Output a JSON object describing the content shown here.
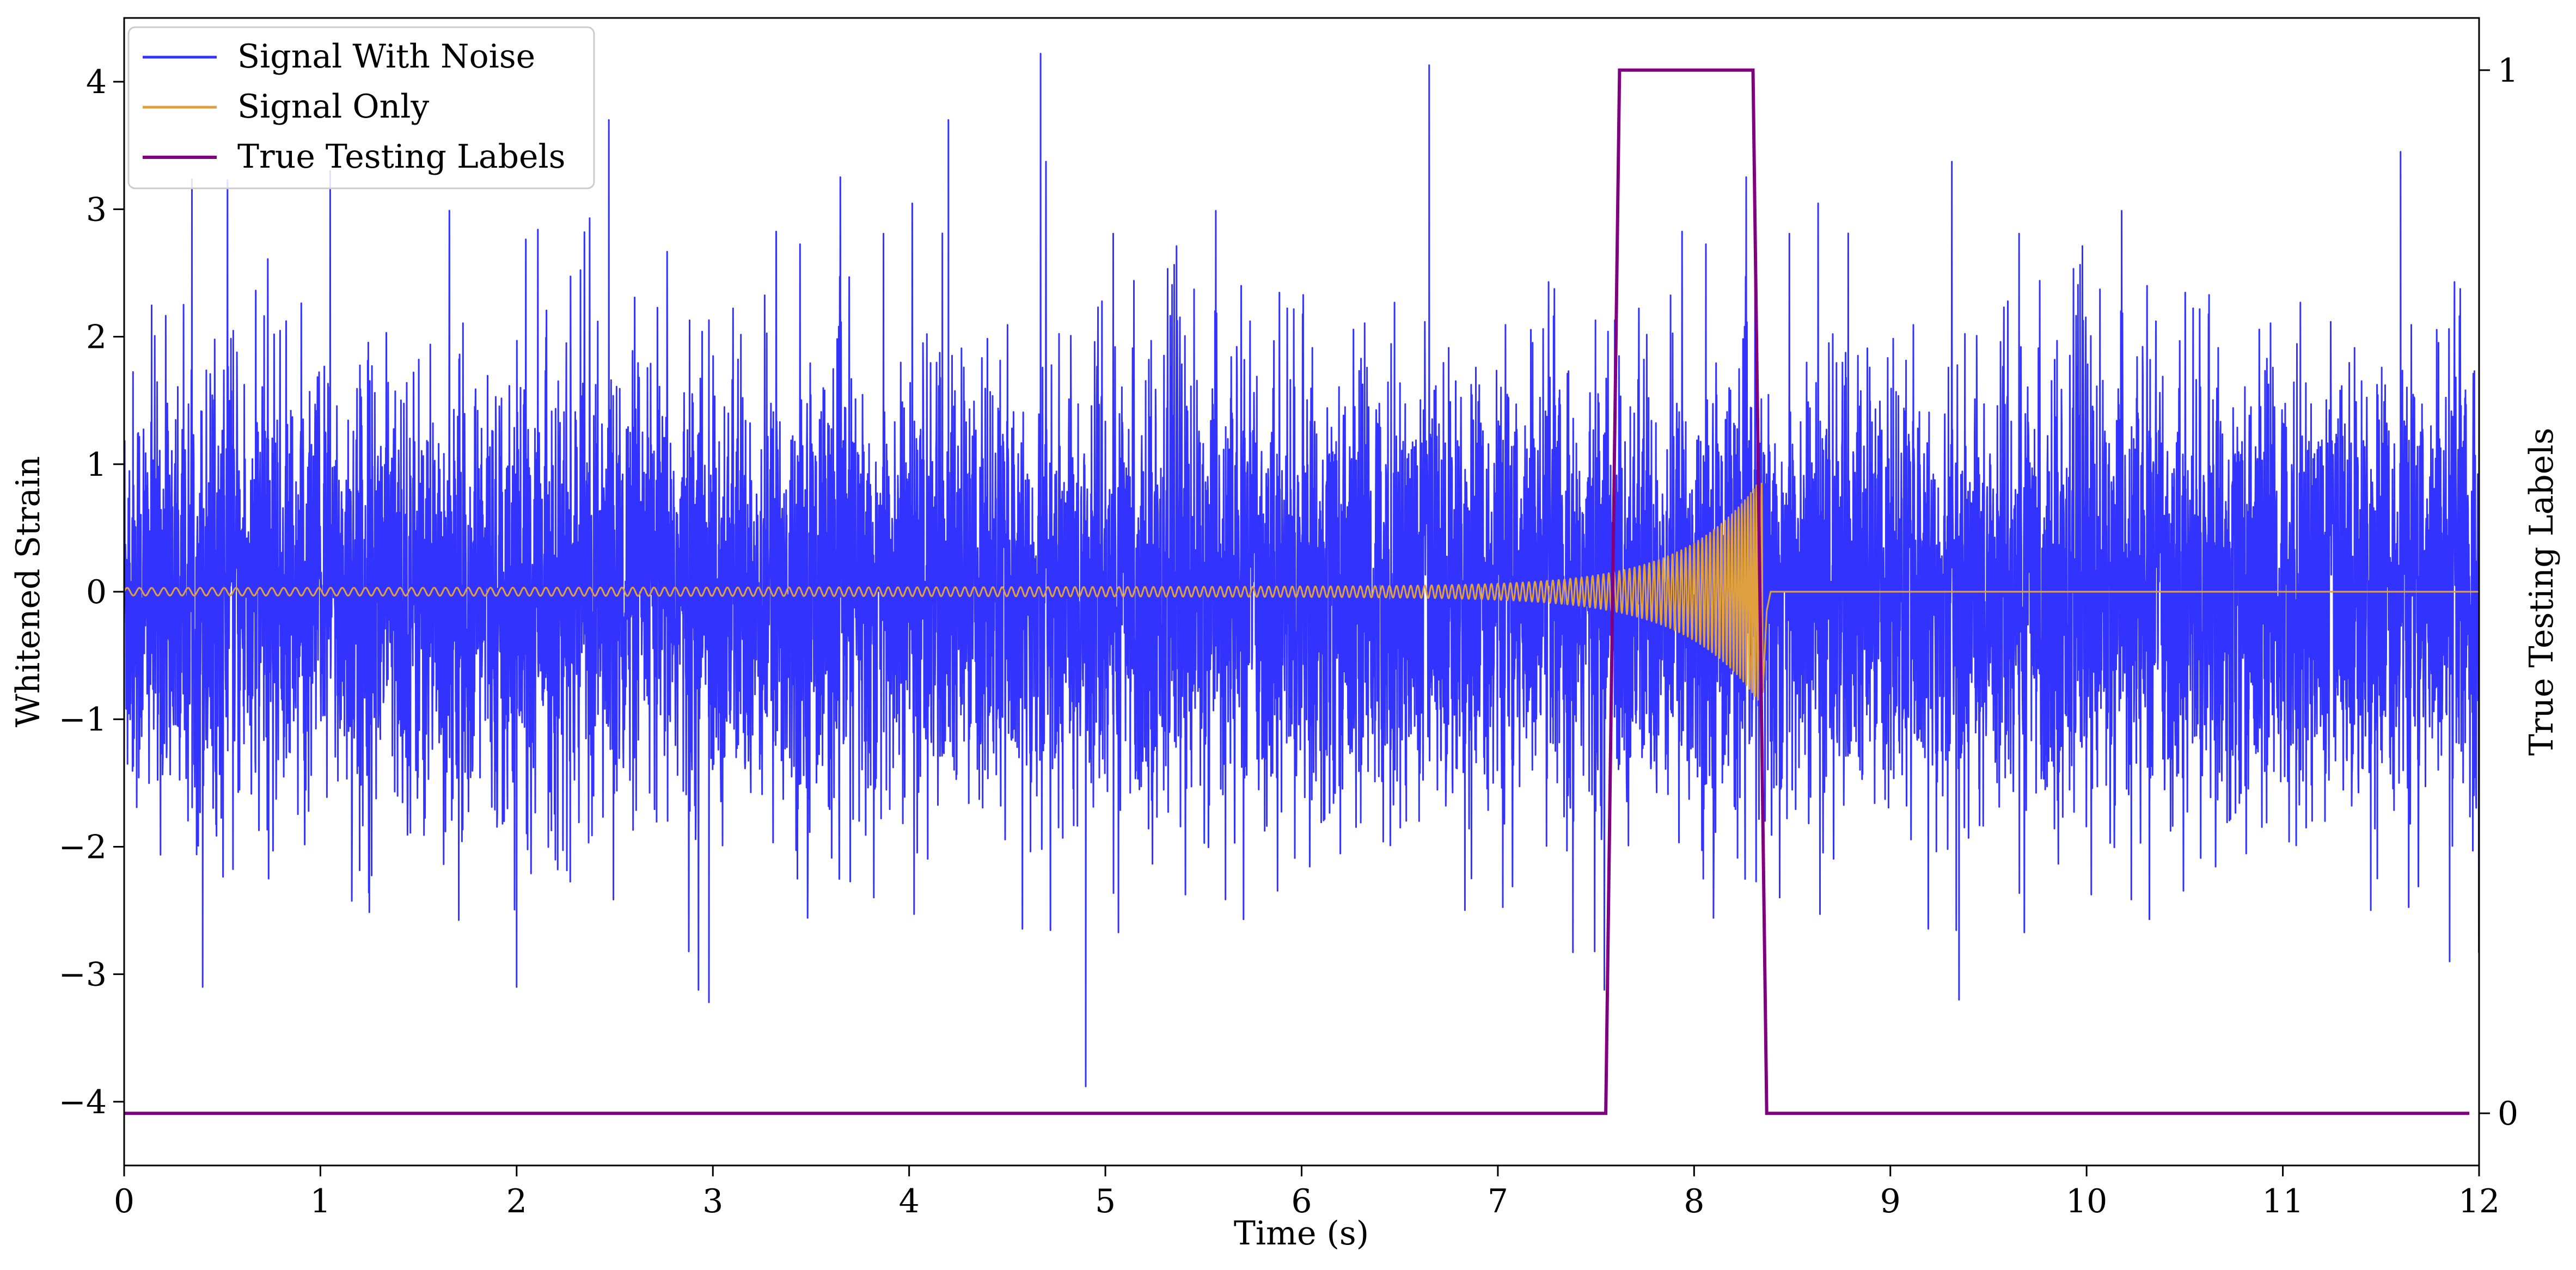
{
  "chart_data": {
    "type": "line",
    "title": "",
    "xlabel": "Time (s)",
    "ylabel": "Whitened Strain",
    "y2label": "True Testing Labels",
    "xlim": [
      0,
      12
    ],
    "ylim": [
      -4.5,
      4.5
    ],
    "y2lim": [
      -0.05,
      1.05
    ],
    "x_ticks": [
      0,
      1,
      2,
      3,
      4,
      5,
      6,
      7,
      8,
      9,
      10,
      11,
      12
    ],
    "x_tick_labels": [
      "0",
      "1",
      "2",
      "3",
      "4",
      "5",
      "6",
      "7",
      "8",
      "9",
      "10",
      "11",
      "12"
    ],
    "y_ticks": [
      -4,
      -3,
      -2,
      -1,
      0,
      1,
      2,
      3,
      4
    ],
    "y_tick_labels": [
      "−4",
      "−3",
      "−2",
      "−1",
      "0",
      "1",
      "2",
      "3",
      "4"
    ],
    "y2_ticks": [
      0,
      1
    ],
    "y2_tick_labels": [
      "0",
      "1"
    ],
    "grid": false,
    "legend_position": "top-left",
    "colors": {
      "signal_with_noise": "#3333ff",
      "signal_only": "#e0a040",
      "true_testing_labels": "#800080"
    },
    "series": [
      {
        "name": "Signal With Noise",
        "axis": "left",
        "description_values": {
          "typical_band": [
            -1.3,
            1.3
          ],
          "max": 4.22,
          "min": -3.88
        },
        "peaks": [
          {
            "x": 1.05,
            "y": 3.3
          },
          {
            "x": 2.47,
            "y": 3.7
          },
          {
            "x": 4.2,
            "y": 3.7
          },
          {
            "x": 4.67,
            "y": 4.22
          },
          {
            "x": 6.65,
            "y": 4.13
          },
          {
            "x": 11.6,
            "y": 3.45
          },
          {
            "x": 0.4,
            "y": -3.1
          },
          {
            "x": 2.0,
            "y": -3.1
          },
          {
            "x": 2.98,
            "y": -3.22
          },
          {
            "x": 4.9,
            "y": -3.88
          },
          {
            "x": 9.35,
            "y": -3.2
          },
          {
            "x": 11.85,
            "y": -2.9
          }
        ]
      },
      {
        "name": "Signal Only",
        "axis": "left",
        "chirp": {
          "start_x": 0,
          "start_amplitude": 0.03,
          "merger_x": 8.35,
          "peak_amplitude": 0.85,
          "after_merger_value": 0
        }
      },
      {
        "name": "True Testing Labels",
        "axis": "right",
        "x": [
          0,
          7.55,
          7.62,
          8.3,
          8.37,
          11.95
        ],
        "y": [
          0,
          0,
          1,
          1,
          0,
          0
        ]
      }
    ]
  }
}
